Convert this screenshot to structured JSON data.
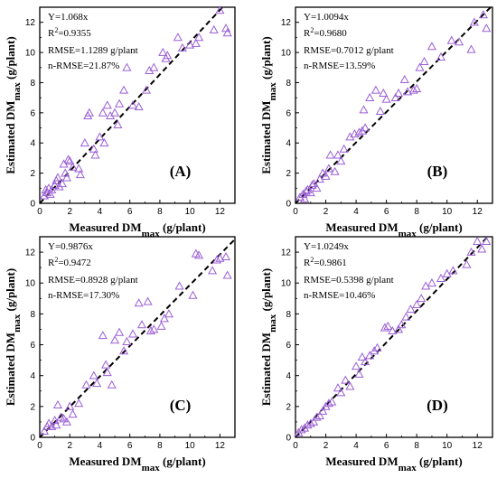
{
  "figure": {
    "accent_color": "#9b5fd4",
    "fit_line_color": "#000000",
    "marker": "open-triangle"
  },
  "chart_data": [
    {
      "type": "scatter",
      "panel": "(A)",
      "xlabel": "Measured DM",
      "xlabel_sub": "max",
      "xlabel_unit": " (g/plant)",
      "ylabel": "Estimated DM",
      "ylabel_sub": "max",
      "ylabel_unit": " (g/plant)",
      "xlim": [
        0,
        13
      ],
      "ylim": [
        0,
        13
      ],
      "xticks": [
        0,
        2,
        4,
        6,
        8,
        10,
        12
      ],
      "yticks": [
        0,
        2,
        4,
        6,
        8,
        10,
        12
      ],
      "stats": {
        "eq": "Y=1.068x",
        "r2_base": "R",
        "r2_sup": "2",
        "r2_val": "=0.9355",
        "rmse": "RMSE=1.1289 g/plant",
        "nrmse": "n-RMSE=21.87%"
      },
      "fit_line": {
        "slope": 1.068
      },
      "points": [
        [
          0.3,
          0.5
        ],
        [
          0.4,
          0.9
        ],
        [
          0.5,
          0.7
        ],
        [
          0.6,
          1.0
        ],
        [
          0.7,
          0.6
        ],
        [
          0.8,
          0.9
        ],
        [
          1.0,
          1.2
        ],
        [
          1.1,
          1.5
        ],
        [
          1.2,
          1.7
        ],
        [
          1.3,
          1.1
        ],
        [
          1.5,
          1.3
        ],
        [
          1.6,
          2.6
        ],
        [
          1.7,
          2.0
        ],
        [
          1.8,
          1.7
        ],
        [
          1.9,
          2.9
        ],
        [
          2.0,
          2.8
        ],
        [
          2.2,
          2.4
        ],
        [
          2.6,
          2.3
        ],
        [
          2.7,
          1.9
        ],
        [
          3.0,
          4.0
        ],
        [
          3.2,
          5.8
        ],
        [
          3.3,
          6.0
        ],
        [
          3.6,
          3.6
        ],
        [
          3.7,
          3.2
        ],
        [
          4.0,
          4.4
        ],
        [
          4.2,
          6.0
        ],
        [
          4.3,
          4.0
        ],
        [
          4.5,
          6.5
        ],
        [
          4.7,
          5.8
        ],
        [
          5.0,
          6.0
        ],
        [
          5.2,
          5.2
        ],
        [
          5.3,
          6.6
        ],
        [
          5.6,
          7.5
        ],
        [
          5.8,
          9.0
        ],
        [
          6.2,
          6.5
        ],
        [
          6.6,
          6.4
        ],
        [
          7.1,
          7.5
        ],
        [
          7.3,
          8.8
        ],
        [
          7.6,
          9.0
        ],
        [
          8.2,
          10.0
        ],
        [
          8.4,
          9.6
        ],
        [
          8.5,
          9.8
        ],
        [
          9.2,
          11.0
        ],
        [
          9.5,
          10.3
        ],
        [
          10.0,
          10.5
        ],
        [
          10.4,
          10.6
        ],
        [
          10.6,
          11.0
        ],
        [
          11.6,
          11.5
        ],
        [
          12.0,
          12.8
        ],
        [
          12.4,
          11.6
        ],
        [
          12.5,
          11.3
        ]
      ]
    },
    {
      "type": "scatter",
      "panel": "(B)",
      "xlabel": "Measured DM",
      "xlabel_sub": "max",
      "xlabel_unit": " (g/plant)",
      "ylabel": "Estimated DM",
      "ylabel_sub": "max",
      "ylabel_unit": " (g/plant)",
      "xlim": [
        0,
        13
      ],
      "ylim": [
        0,
        13
      ],
      "xticks": [
        0,
        2,
        4,
        6,
        8,
        10,
        12
      ],
      "yticks": [
        0,
        2,
        4,
        6,
        8,
        10,
        12
      ],
      "stats": {
        "eq": "Y=1.0094x",
        "r2_base": "R",
        "r2_sup": "2",
        "r2_val": "=0.9680",
        "rmse": "RMSE=0.7012 g/plant",
        "nrmse": "n-RMSE=13.59%"
      },
      "fit_line": {
        "slope": 1.0094
      },
      "points": [
        [
          0.3,
          0.4
        ],
        [
          0.5,
          0.6
        ],
        [
          0.6,
          0.3
        ],
        [
          0.7,
          0.8
        ],
        [
          0.8,
          0.9
        ],
        [
          1.0,
          0.7
        ],
        [
          1.1,
          1.2
        ],
        [
          1.2,
          1.3
        ],
        [
          1.4,
          1.0
        ],
        [
          1.6,
          1.6
        ],
        [
          1.8,
          2.0
        ],
        [
          2.0,
          1.8
        ],
        [
          2.2,
          2.3
        ],
        [
          2.3,
          3.2
        ],
        [
          2.6,
          2.1
        ],
        [
          2.8,
          3.2
        ],
        [
          3.0,
          2.8
        ],
        [
          3.2,
          3.6
        ],
        [
          3.6,
          4.4
        ],
        [
          3.9,
          4.6
        ],
        [
          4.2,
          4.7
        ],
        [
          4.4,
          4.8
        ],
        [
          4.5,
          6.2
        ],
        [
          4.6,
          5.0
        ],
        [
          4.9,
          7.0
        ],
        [
          5.3,
          7.5
        ],
        [
          5.6,
          6.1
        ],
        [
          5.8,
          7.3
        ],
        [
          6.0,
          6.9
        ],
        [
          6.6,
          7.0
        ],
        [
          6.8,
          7.3
        ],
        [
          7.2,
          8.2
        ],
        [
          7.4,
          7.4
        ],
        [
          7.8,
          7.5
        ],
        [
          8.0,
          7.6
        ],
        [
          8.2,
          9.0
        ],
        [
          8.5,
          9.4
        ],
        [
          9.0,
          10.4
        ],
        [
          9.6,
          9.7
        ],
        [
          10.3,
          10.8
        ],
        [
          10.8,
          10.7
        ],
        [
          11.6,
          10.2
        ],
        [
          11.8,
          12.0
        ],
        [
          12.4,
          12.5
        ],
        [
          12.6,
          11.6
        ]
      ]
    },
    {
      "type": "scatter",
      "panel": "(C)",
      "xlabel": "Measured DM",
      "xlabel_sub": "max",
      "xlabel_unit": " (g/plant)",
      "ylabel": "Estimated DM",
      "ylabel_sub": "max",
      "ylabel_unit": " (g/plant)",
      "xlim": [
        0,
        13
      ],
      "ylim": [
        0,
        13
      ],
      "xticks": [
        0,
        2,
        4,
        6,
        8,
        10,
        12
      ],
      "yticks": [
        0,
        2,
        4,
        6,
        8,
        10,
        12
      ],
      "stats": {
        "eq": "Y=0.9876x",
        "r2_base": "R",
        "r2_sup": "2",
        "r2_val": "=0.9472",
        "rmse": "RMSE=0.8928 g/plant",
        "nrmse": "n-RMSE=17.30%"
      },
      "fit_line": {
        "slope": 0.9876
      },
      "points": [
        [
          0.3,
          0.4
        ],
        [
          0.5,
          0.7
        ],
        [
          0.6,
          0.9
        ],
        [
          0.8,
          0.7
        ],
        [
          1.0,
          1.1
        ],
        [
          1.1,
          0.8
        ],
        [
          1.2,
          2.1
        ],
        [
          1.4,
          1.3
        ],
        [
          1.6,
          1.2
        ],
        [
          1.8,
          1.0
        ],
        [
          2.0,
          2.0
        ],
        [
          2.2,
          1.5
        ],
        [
          2.6,
          2.2
        ],
        [
          3.1,
          3.4
        ],
        [
          3.6,
          4.0
        ],
        [
          3.8,
          3.5
        ],
        [
          4.2,
          6.6
        ],
        [
          4.4,
          4.7
        ],
        [
          4.5,
          4.2
        ],
        [
          4.8,
          3.4
        ],
        [
          5.0,
          6.3
        ],
        [
          5.3,
          6.8
        ],
        [
          5.6,
          5.6
        ],
        [
          5.8,
          6.2
        ],
        [
          6.2,
          6.7
        ],
        [
          6.6,
          8.7
        ],
        [
          6.8,
          7.3
        ],
        [
          7.2,
          8.8
        ],
        [
          7.4,
          6.9
        ],
        [
          7.6,
          7.0
        ],
        [
          8.1,
          7.2
        ],
        [
          8.3,
          7.7
        ],
        [
          8.6,
          8.0
        ],
        [
          9.3,
          9.8
        ],
        [
          10.2,
          9.2
        ],
        [
          10.4,
          11.9
        ],
        [
          10.6,
          11.8
        ],
        [
          11.5,
          10.8
        ],
        [
          11.8,
          11.5
        ],
        [
          12.0,
          11.6
        ],
        [
          12.4,
          11.7
        ],
        [
          12.5,
          10.5
        ]
      ]
    },
    {
      "type": "scatter",
      "panel": "(D)",
      "xlabel": "Measured DM",
      "xlabel_sub": "max",
      "xlabel_unit": " (g/plant)",
      "ylabel": "Estimated DM",
      "ylabel_sub": "max",
      "ylabel_unit": " (g/plant)",
      "xlim": [
        0,
        13
      ],
      "ylim": [
        0,
        13
      ],
      "xticks": [
        0,
        2,
        4,
        6,
        8,
        10,
        12
      ],
      "yticks": [
        0,
        2,
        4,
        6,
        8,
        10,
        12
      ],
      "stats": {
        "eq": "Y=1.0249x",
        "r2_base": "R",
        "r2_sup": "2",
        "r2_val": "=0.9861",
        "rmse": "RMSE=0.5398 g/plant",
        "nrmse": "n-RMSE=10.46%"
      },
      "fit_line": {
        "slope": 1.0249
      },
      "points": [
        [
          0.2,
          0.3
        ],
        [
          0.4,
          0.5
        ],
        [
          0.6,
          0.6
        ],
        [
          0.8,
          0.8
        ],
        [
          1.0,
          0.9
        ],
        [
          1.2,
          1.0
        ],
        [
          1.4,
          1.3
        ],
        [
          1.6,
          1.4
        ],
        [
          1.8,
          1.7
        ],
        [
          2.0,
          2.0
        ],
        [
          2.2,
          2.2
        ],
        [
          2.4,
          2.3
        ],
        [
          2.8,
          3.2
        ],
        [
          3.0,
          2.9
        ],
        [
          3.3,
          3.7
        ],
        [
          3.6,
          3.3
        ],
        [
          4.0,
          4.6
        ],
        [
          4.2,
          4.1
        ],
        [
          4.4,
          5.2
        ],
        [
          4.6,
          4.9
        ],
        [
          4.9,
          5.3
        ],
        [
          5.2,
          5.6
        ],
        [
          5.4,
          5.8
        ],
        [
          5.9,
          7.1
        ],
        [
          6.1,
          7.2
        ],
        [
          6.4,
          6.9
        ],
        [
          6.8,
          7.0
        ],
        [
          7.0,
          7.3
        ],
        [
          7.3,
          7.8
        ],
        [
          7.6,
          8.3
        ],
        [
          8.0,
          8.6
        ],
        [
          8.3,
          9.0
        ],
        [
          8.6,
          9.8
        ],
        [
          9.0,
          10.0
        ],
        [
          9.6,
          10.3
        ],
        [
          10.0,
          10.6
        ],
        [
          10.4,
          10.8
        ],
        [
          11.3,
          11.2
        ],
        [
          11.6,
          12.0
        ],
        [
          12.0,
          12.7
        ],
        [
          12.3,
          12.2
        ],
        [
          12.6,
          12.7
        ]
      ]
    }
  ]
}
